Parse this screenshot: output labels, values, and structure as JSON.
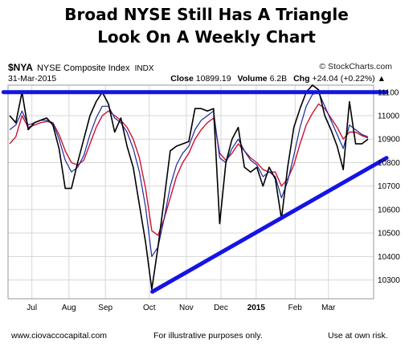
{
  "headline": {
    "line1": "Broad NYSE Still Has A Triangle",
    "line2": "Look On A Weekly Chart"
  },
  "header": {
    "symbol": "$NYA",
    "name": "NYSE Composite Index",
    "exchange": "INDX",
    "brand": "© StockCharts.com",
    "date": "31-Mar-2015",
    "close_label": "Close",
    "close_value": "10899.19",
    "volume_label": "Volume",
    "volume_value": "6.2B",
    "chg_label": "Chg",
    "chg_value": "+24.04 (+0.22%)",
    "chg_arrow": "▲"
  },
  "footer": {
    "left": "www.ciovaccocapital.com",
    "middle": "For illustrative purposes only.",
    "right": "Use at own risk."
  },
  "colors": {
    "price": "#000000",
    "ma_fast": "#1a2a9a",
    "ma_slow": "#cc1133",
    "trendlines": "#1414e6",
    "grid": "#d6d6d6"
  },
  "chart_data": {
    "type": "line",
    "ylim": [
      10220,
      11130
    ],
    "y_ticks": [
      10300,
      10400,
      10500,
      10600,
      10700,
      10800,
      10900,
      11000,
      11100
    ],
    "x_labels": [
      "Jul",
      "Aug",
      "Sep",
      "Oct",
      "Nov",
      "Dec",
      "2015",
      "Feb",
      "Mar"
    ],
    "x_label_weeks": [
      3.6,
      9.6,
      15.5,
      22.6,
      28.6,
      34.2,
      39.9,
      46.2,
      51.6
    ],
    "week_count": 59,
    "series": [
      {
        "values": [
          11000,
          10970,
          11100,
          10940,
          10970,
          10980,
          10990,
          10960,
          10860,
          10690,
          10690,
          10800,
          10900,
          11000,
          11060,
          11100,
          11050,
          10930,
          10990,
          10870,
          10780,
          10620,
          10460,
          10260,
          10440,
          10640,
          10850,
          10870,
          10880,
          10890,
          11030,
          11030,
          11020,
          11030,
          10540,
          10800,
          10900,
          10950,
          10780,
          10760,
          10780,
          10700,
          10780,
          10730,
          10560,
          10780,
          10950,
          11030,
          11100,
          11130,
          11110,
          11000,
          10940,
          10870,
          10770,
          11060,
          10880,
          10880,
          10900
        ]
      },
      {
        "values": [
          10940,
          10960,
          11020,
          10960,
          10970,
          10980,
          10980,
          10970,
          10900,
          10810,
          10760,
          10780,
          10830,
          10920,
          10990,
          11040,
          11040,
          10990,
          10970,
          10930,
          10860,
          10760,
          10610,
          10400,
          10440,
          10560,
          10700,
          10790,
          10840,
          10870,
          10940,
          10980,
          11000,
          11020,
          10820,
          10800,
          10860,
          10900,
          10850,
          10810,
          10790,
          10740,
          10760,
          10740,
          10650,
          10720,
          10830,
          10950,
          11040,
          11090,
          11100,
          11040,
          10980,
          10920,
          10860,
          10960,
          10940,
          10920,
          10910
        ]
      },
      {
        "values": [
          10880,
          10910,
          11000,
          10950,
          10960,
          10970,
          10975,
          10970,
          10920,
          10850,
          10800,
          10790,
          10810,
          10880,
          10950,
          11000,
          11020,
          11000,
          10980,
          10950,
          10900,
          10820,
          10690,
          10510,
          10490,
          10560,
          10650,
          10740,
          10800,
          10840,
          10900,
          10940,
          10970,
          10990,
          10840,
          10810,
          10840,
          10880,
          10850,
          10820,
          10800,
          10770,
          10760,
          10760,
          10700,
          10730,
          10790,
          10880,
          10960,
          11010,
          11050,
          11030,
          10990,
          10950,
          10900,
          10930,
          10930,
          10915,
          10905
        ]
      }
    ],
    "trendlines": [
      {
        "from": [
          -1,
          11100
        ],
        "to": [
          61,
          11100
        ]
      },
      {
        "from": [
          23.1,
          10250
        ],
        "to": [
          61,
          10820
        ]
      }
    ]
  }
}
